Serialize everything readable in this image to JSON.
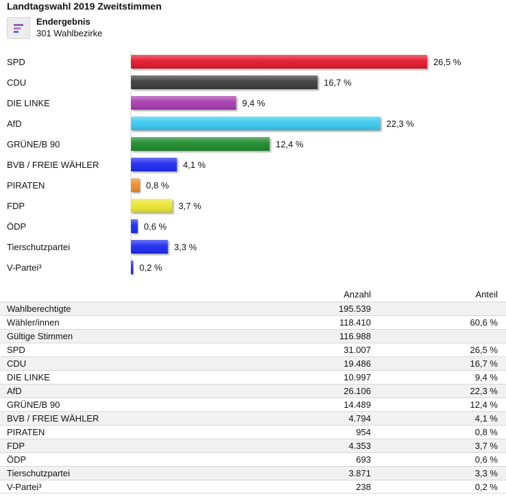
{
  "title": "Landtagswahl 2019 Zweitstimmen",
  "status": {
    "label": "Endergebnis",
    "districts": "301 Wahlbezirke",
    "icon": "bar-chart-icon"
  },
  "chart_data": {
    "type": "bar",
    "orientation": "horizontal",
    "categories": [
      "SPD",
      "CDU",
      "DIE LINKE",
      "AfD",
      "GRÜNE/B 90",
      "BVB / FREIE WÄHLER",
      "PIRATEN",
      "FDP",
      "ÖDP",
      "Tierschutzpartei",
      "V-Partei³"
    ],
    "values": [
      26.5,
      16.7,
      9.4,
      22.3,
      12.4,
      4.1,
      0.8,
      3.7,
      0.6,
      3.3,
      0.2
    ],
    "value_labels": [
      "26,5 %",
      "16,7 %",
      "9,4 %",
      "22,3 %",
      "12,4 %",
      "4,1 %",
      "0,8 %",
      "3,7 %",
      "0,6 %",
      "3,3 %",
      "0,2 %"
    ],
    "colors": [
      "#e3192b",
      "#3a3a3a",
      "#a63bb0",
      "#38c9f0",
      "#1d8a2c",
      "#1a2cf0",
      "#ef8c2a",
      "#e9e62e",
      "#1a2cf0",
      "#1a2cf0",
      "#1a2cf0"
    ],
    "xlim": [
      0,
      30
    ],
    "grid": false,
    "legend": "none"
  },
  "table": {
    "header": {
      "anzahl": "Anzahl",
      "anteil": "Anteil"
    },
    "rows": [
      {
        "name": "Wahlberechtigte",
        "anzahl": "195.539",
        "anteil": ""
      },
      {
        "name": "Wähler/innen",
        "anzahl": "118.410",
        "anteil": "60,6 %"
      },
      {
        "name": "Gültige Stimmen",
        "anzahl": "116.988",
        "anteil": ""
      },
      {
        "name": "SPD",
        "anzahl": "31.007",
        "anteil": "26,5 %"
      },
      {
        "name": "CDU",
        "anzahl": "19.486",
        "anteil": "16,7 %"
      },
      {
        "name": "DIE LINKE",
        "anzahl": "10.997",
        "anteil": "9,4 %"
      },
      {
        "name": "AfD",
        "anzahl": "26.106",
        "anteil": "22,3 %"
      },
      {
        "name": "GRÜNE/B 90",
        "anzahl": "14.489",
        "anteil": "12,4 %"
      },
      {
        "name": "BVB / FREIE WÄHLER",
        "anzahl": "4.794",
        "anteil": "4,1 %"
      },
      {
        "name": "PIRATEN",
        "anzahl": "954",
        "anteil": "0,8 %"
      },
      {
        "name": "FDP",
        "anzahl": "4.353",
        "anteil": "3,7 %"
      },
      {
        "name": "ÖDP",
        "anzahl": "693",
        "anteil": "0,6 %"
      },
      {
        "name": "Tierschutzpartei",
        "anzahl": "3.871",
        "anteil": "3,3 %"
      },
      {
        "name": "V-Partei³",
        "anzahl": "238",
        "anteil": "0,2 %"
      }
    ]
  }
}
